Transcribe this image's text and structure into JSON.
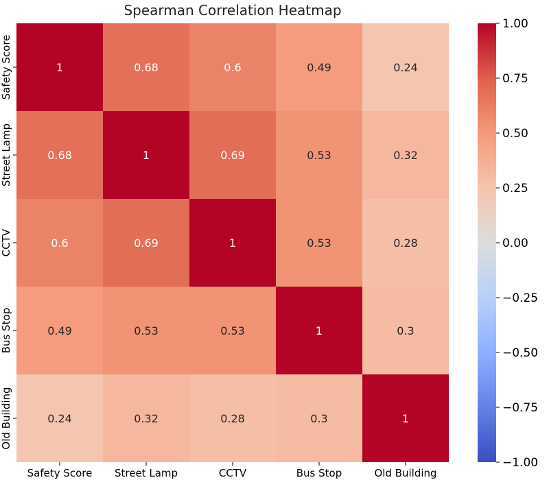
{
  "chart_data": {
    "type": "heatmap",
    "title": "Spearman Correlation Heatmap",
    "x_labels": [
      "Safety Score",
      "Street Lamp",
      "CCTV",
      "Bus Stop",
      "Old Building"
    ],
    "y_labels": [
      "Safety Score",
      "Street Lamp",
      "CCTV",
      "Bus Stop",
      "Old Building"
    ],
    "values": [
      [
        1,
        0.68,
        0.6,
        0.49,
        0.24
      ],
      [
        0.68,
        1,
        0.69,
        0.53,
        0.32
      ],
      [
        0.6,
        0.69,
        1,
        0.53,
        0.28
      ],
      [
        0.49,
        0.53,
        0.53,
        1,
        0.3
      ],
      [
        0.24,
        0.32,
        0.28,
        0.3,
        1
      ]
    ],
    "colorbar": {
      "colormap": "coolwarm",
      "vmin": -1.0,
      "vmax": 1.0,
      "ticks": [
        1.0,
        0.75,
        0.5,
        0.25,
        0.0,
        -0.25,
        -0.5,
        -0.75,
        -1.0
      ],
      "tick_labels": [
        "1.00",
        "0.75",
        "0.50",
        "0.25",
        "0.00",
        "−0.25",
        "−0.50",
        "−0.75",
        "−1.00"
      ]
    },
    "annotations": true,
    "grid": false
  }
}
